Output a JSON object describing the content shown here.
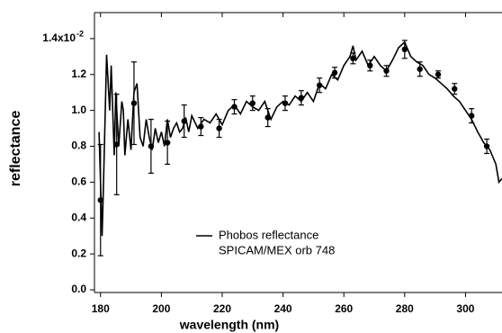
{
  "chart_data": {
    "type": "line",
    "xlabel": "wavelength (nm)",
    "ylabel": "reflectance",
    "y_exponent": "-2",
    "annotation": "SPICAM/MEX orb 748",
    "xlim": [
      178,
      312
    ],
    "xticks": [
      180,
      200,
      220,
      240,
      260,
      280,
      300
    ],
    "ylim": [
      -0.015,
      1.545
    ],
    "yticks": [
      {
        "value": 0,
        "label": "0.0"
      },
      0.2,
      0.4,
      0.6,
      0.8,
      {
        "value": 1,
        "label": "1.0"
      },
      1.2,
      {
        "value": 1.4,
        "label": "1.4x10"
      }
    ],
    "series": [
      {
        "name": "Phobos reflectance",
        "color": "#000000",
        "x": [
          179.5,
          180.5,
          181,
          182,
          183,
          183.5,
          184.5,
          185,
          186,
          187,
          187.5,
          188,
          189,
          190,
          191,
          192,
          193,
          194,
          195,
          196,
          197,
          198,
          199,
          200,
          201,
          202,
          203,
          204,
          205,
          206,
          207,
          208,
          209,
          210,
          212,
          214,
          216,
          218,
          220,
          222,
          224,
          226,
          228,
          230,
          232,
          234,
          236,
          238,
          240,
          242,
          244,
          246,
          248,
          250,
          252,
          254,
          256,
          258,
          260,
          262,
          263,
          264,
          266,
          268,
          270,
          272,
          274,
          276,
          278,
          280,
          282,
          284,
          286,
          288,
          290,
          292,
          294,
          296,
          298,
          300,
          302,
          304,
          306,
          308,
          310,
          311,
          312
        ],
        "values": [
          0.88,
          0.3,
          0.6,
          1.31,
          1.0,
          1.25,
          0.75,
          1.1,
          0.8,
          1.05,
          1.0,
          0.75,
          0.95,
          0.78,
          1.1,
          1.15,
          0.85,
          0.8,
          0.95,
          0.85,
          0.78,
          0.9,
          0.82,
          0.88,
          0.8,
          0.95,
          0.85,
          0.9,
          0.93,
          0.88,
          0.9,
          0.96,
          0.88,
          0.97,
          0.9,
          0.95,
          0.93,
          0.98,
          0.92,
          1.0,
          1.03,
          0.98,
          1.05,
          1.02,
          1.0,
          1.05,
          0.95,
          1.02,
          1.05,
          1.03,
          1.08,
          1.05,
          1.1,
          1.05,
          1.15,
          1.12,
          1.2,
          1.17,
          1.25,
          1.3,
          1.36,
          1.28,
          1.33,
          1.25,
          1.3,
          1.25,
          1.22,
          1.28,
          1.35,
          1.38,
          1.3,
          1.27,
          1.25,
          1.2,
          1.18,
          1.15,
          1.12,
          1.08,
          1.05,
          1.0,
          0.95,
          0.88,
          0.82,
          0.78,
          0.7,
          0.6,
          0.62
        ]
      },
      {
        "type": "scatter",
        "color": "#000000",
        "x": [
          180,
          185.3,
          191,
          196.6,
          202,
          207.5,
          213,
          219,
          224,
          230,
          235,
          240.7,
          246,
          252,
          257,
          263,
          268.6,
          274,
          280,
          285,
          291,
          296.4,
          302,
          307
        ],
        "values": [
          0.5,
          0.81,
          1.04,
          0.8,
          0.82,
          0.94,
          0.91,
          0.9,
          1.02,
          1.04,
          0.96,
          1.04,
          1.07,
          1.14,
          1.21,
          1.29,
          1.25,
          1.22,
          1.34,
          1.23,
          1.2,
          1.12,
          0.97,
          0.8
        ],
        "errors": [
          0.31,
          0.28,
          0.23,
          0.15,
          0.12,
          0.09,
          0.05,
          0.05,
          0.04,
          0.04,
          0.05,
          0.04,
          0.04,
          0.04,
          0.03,
          0.03,
          0.03,
          0.03,
          0.05,
          0.04,
          0.02,
          0.03,
          0.04,
          0.04
        ]
      }
    ]
  }
}
